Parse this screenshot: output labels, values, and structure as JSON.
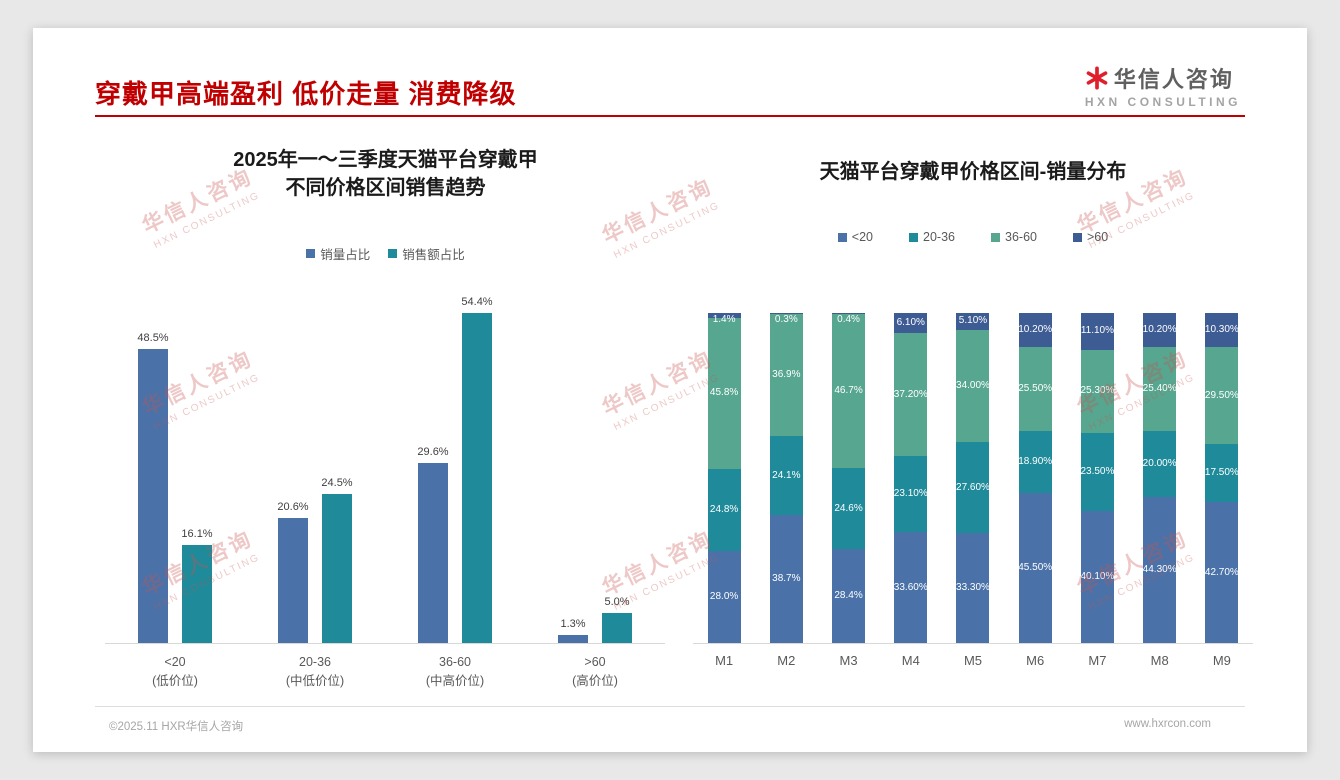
{
  "page": {
    "title": "穿戴甲高端盈利 低价走量 消费降级",
    "logo": {
      "name": "华信人咨询",
      "subtitle": "HXN CONSULTING"
    },
    "footer": {
      "left": "©2025.11 HXR华信人咨询",
      "right": "www.hxrcon.com"
    },
    "watermark": {
      "line1": "华信人咨询",
      "line2": "HXN CONSULTING"
    }
  },
  "colors": {
    "title_red": "#c00000",
    "volume_blue": "#4a72a8",
    "revenue_teal": "#1f8a99",
    "seafoam_green": "#57a68f",
    "navy_blue": "#3e5c94"
  },
  "chart_data": [
    {
      "type": "bar",
      "stacked": false,
      "title_lines": [
        "2025年一～三季度天猫平台穿戴甲",
        "不同价格区间销售趋势"
      ],
      "categories": [
        "<20",
        "20-36",
        "36-60",
        ">60"
      ],
      "category_sublabels": [
        "(低价位)",
        "(中低价位)",
        "(中高价位)",
        "(高价位)"
      ],
      "series": [
        {
          "name": "销量占比",
          "color": "#4a72a8",
          "values": [
            48.5,
            20.6,
            29.6,
            1.3
          ],
          "labels": [
            "48.5%",
            "20.6%",
            "29.6%",
            "1.3%"
          ]
        },
        {
          "name": "销售额占比",
          "color": "#1f8a99",
          "values": [
            16.1,
            24.5,
            54.4,
            5.0
          ],
          "labels": [
            "16.1%",
            "24.5%",
            "54.4%",
            "5.0%"
          ]
        }
      ],
      "xlabel": "",
      "ylabel": "",
      "ylim": [
        0,
        60
      ],
      "grid": false,
      "legend_position": "top"
    },
    {
      "type": "bar",
      "stacked": true,
      "title_lines": [
        "天猫平台穿戴甲价格区间-销量分布"
      ],
      "categories": [
        "M1",
        "M2",
        "M3",
        "M4",
        "M5",
        "M6",
        "M7",
        "M8",
        "M9"
      ],
      "series": [
        {
          "name": "<20",
          "color": "#4a72a8",
          "values": [
            28.0,
            38.7,
            28.4,
            33.6,
            33.3,
            45.5,
            40.1,
            44.3,
            42.7
          ],
          "labels": [
            "28.0%",
            "38.7%",
            "28.4%",
            "33.60%",
            "33.30%",
            "45.50%",
            "40.10%",
            "44.30%",
            "42.70%"
          ]
        },
        {
          "name": "20-36",
          "color": "#1f8a99",
          "values": [
            24.8,
            24.1,
            24.6,
            23.1,
            27.6,
            18.9,
            23.5,
            20.0,
            17.5
          ],
          "labels": [
            "24.8%",
            "24.1%",
            "24.6%",
            "23.10%",
            "27.60%",
            "18.90%",
            "23.50%",
            "20.00%",
            "17.50%"
          ]
        },
        {
          "name": "36-60",
          "color": "#57a68f",
          "values": [
            45.8,
            36.9,
            46.7,
            37.2,
            34.0,
            25.5,
            25.3,
            25.4,
            29.5
          ],
          "labels": [
            "45.8%",
            "36.9%",
            "46.7%",
            "37.20%",
            "34.00%",
            "25.50%",
            "25.30%",
            "25.40%",
            "29.50%"
          ]
        },
        {
          "name": ">60",
          "color": "#3e5c94",
          "values": [
            1.4,
            0.3,
            0.4,
            6.1,
            5.1,
            10.2,
            11.1,
            10.2,
            10.3
          ],
          "labels": [
            "1.4%",
            "0.3%",
            "0.4%",
            "6.10%",
            "5.10%",
            "10.20%",
            "11.10%",
            "10.20%",
            "10.30%"
          ]
        }
      ],
      "xlabel": "",
      "ylabel": "",
      "ylim": [
        0,
        100
      ],
      "grid": false,
      "legend_position": "top"
    }
  ]
}
